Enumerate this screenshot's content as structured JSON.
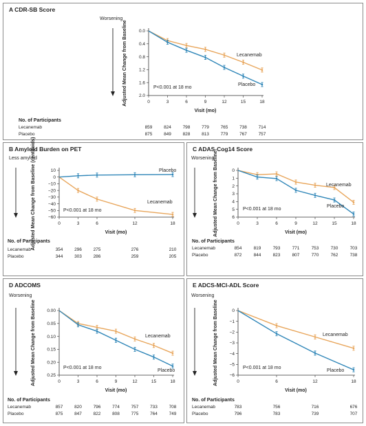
{
  "colors": {
    "lecanemab": "#e8a55a",
    "placebo": "#2f86b8",
    "axis": "#333333",
    "frame": "#8a8a8a"
  },
  "chart_data": [
    {
      "id": "A",
      "type": "line",
      "title": "A  CDR-SB Score",
      "direction_label": "Worsening",
      "ylabel": "Adjusted Mean Change from Baseline",
      "xlabel": "Visit (mo)",
      "x": [
        0,
        3,
        6,
        9,
        12,
        15,
        18
      ],
      "xticks": [
        "0",
        "3",
        "6",
        "9",
        "12",
        "15",
        "18"
      ],
      "yticks": [
        "0.0",
        "0.4",
        "0.8",
        "1.2",
        "1.6",
        "2.0"
      ],
      "ylim": [
        0,
        2.0
      ],
      "yinverted": true,
      "annotation": "P<0.001 at 18 mo",
      "series": [
        {
          "name": "Lecanemab",
          "values": [
            0,
            0.3,
            0.45,
            0.57,
            0.75,
            0.97,
            1.21
          ]
        },
        {
          "name": "Placebo",
          "values": [
            0,
            0.35,
            0.6,
            0.82,
            1.13,
            1.4,
            1.66
          ]
        }
      ],
      "participants": {
        "header": "No. of Participants",
        "rows": [
          {
            "label": "Lecanemab",
            "counts": [
              "859",
              "824",
              "798",
              "779",
              "765",
              "738",
              "714"
            ]
          },
          {
            "label": "Placebo",
            "counts": [
              "875",
              "849",
              "828",
              "813",
              "779",
              "767",
              "757"
            ]
          }
        ]
      }
    },
    {
      "id": "B",
      "type": "line",
      "title": "B  Amyloid Burden on PET",
      "direction_label": "Less amyloid",
      "ylabel": "Adjusted Mean Change from Baseline (centiloids)",
      "xlabel": "Visit (mo)",
      "x": [
        0,
        3,
        6,
        12,
        18
      ],
      "xticks": [
        "0",
        "3",
        "6",
        "12",
        "18"
      ],
      "xtick_pos": [
        0,
        3,
        6,
        12,
        18
      ],
      "yticks": [
        "10",
        "0",
        "−10",
        "−20",
        "−30",
        "−40",
        "−50",
        "−60"
      ],
      "ylim": [
        -60,
        10
      ],
      "yinverted": false,
      "annotation": "P<0.001 at 18 mo",
      "series": [
        {
          "name": "Lecanemab",
          "values": [
            0,
            -20,
            -33,
            -50,
            -56
          ]
        },
        {
          "name": "Placebo",
          "values": [
            0,
            2,
            3,
            3.5,
            3.8
          ]
        }
      ],
      "participants": {
        "header": "No. of Participants",
        "rows": [
          {
            "label": "Lecanemab",
            "counts": [
              "354",
              "296",
              "275",
              "276",
              "210"
            ]
          },
          {
            "label": "Placebo",
            "counts": [
              "344",
              "303",
              "286",
              "259",
              "205"
            ]
          }
        ]
      }
    },
    {
      "id": "C",
      "type": "line",
      "title": "C  ADAS-Cog14 Score",
      "direction_label": "Worsening",
      "ylabel": "Adjusted Mean Change from Baseline",
      "xlabel": "Visit (mo)",
      "x": [
        0,
        3,
        6,
        9,
        12,
        15,
        18
      ],
      "xticks": [
        "0",
        "3",
        "6",
        "9",
        "12",
        "15",
        "18"
      ],
      "yticks": [
        "0",
        "1",
        "2",
        "3",
        "4",
        "5",
        "6"
      ],
      "ylim": [
        0,
        6
      ],
      "yinverted": true,
      "annotation": "P<0.001 at 18 mo",
      "series": [
        {
          "name": "Lecanemab",
          "values": [
            0,
            0.55,
            0.45,
            1.5,
            1.9,
            2.2,
            4.1
          ]
        },
        {
          "name": "Placebo",
          "values": [
            0,
            0.85,
            1.05,
            2.55,
            3.2,
            3.8,
            5.6
          ]
        }
      ],
      "participants": {
        "header": "No. of Participants",
        "rows": [
          {
            "label": "Lecanemab",
            "counts": [
              "854",
              "819",
              "793",
              "771",
              "753",
              "730",
              "703"
            ]
          },
          {
            "label": "Placebo",
            "counts": [
              "872",
              "844",
              "823",
              "807",
              "770",
              "762",
              "738"
            ]
          }
        ]
      }
    },
    {
      "id": "D",
      "type": "line",
      "title": "D  ADCOMS",
      "direction_label": "Worsening",
      "ylabel": "Adjusted Mean Change from Baseline",
      "xlabel": "Visit (mo)",
      "x": [
        0,
        3,
        6,
        9,
        12,
        15,
        18
      ],
      "xticks": [
        "0",
        "3",
        "6",
        "9",
        "12",
        "15",
        "18"
      ],
      "yticks": [
        "0.00",
        "0.05",
        "0.10",
        "0.15",
        "0.20",
        "0.25"
      ],
      "ylim": [
        0,
        0.25
      ],
      "yinverted": true,
      "annotation": "P<0.001 at 18 mo",
      "series": [
        {
          "name": "Lecanemab",
          "values": [
            0,
            0.05,
            0.065,
            0.08,
            0.11,
            0.135,
            0.165
          ]
        },
        {
          "name": "Placebo",
          "values": [
            0,
            0.055,
            0.08,
            0.115,
            0.15,
            0.18,
            0.215
          ]
        }
      ],
      "participants": {
        "header": "No. of Participants",
        "rows": [
          {
            "label": "Lecanemab",
            "counts": [
              "857",
              "820",
              "796",
              "774",
              "757",
              "733",
              "708"
            ]
          },
          {
            "label": "Placebo",
            "counts": [
              "875",
              "847",
              "822",
              "808",
              "775",
              "764",
              "749"
            ]
          }
        ]
      }
    },
    {
      "id": "E",
      "type": "line",
      "title": "E  ADCS-MCI-ADL Score",
      "direction_label": "Worsening",
      "ylabel": "Adjusted Mean Change from Baseline",
      "xlabel": "Visit (mo)",
      "x": [
        0,
        6,
        12,
        18
      ],
      "xticks": [
        "0",
        "6",
        "12",
        "18"
      ],
      "yticks": [
        "0",
        "−1",
        "−2",
        "−3",
        "−4",
        "−5",
        "−6"
      ],
      "ylim": [
        -6,
        0
      ],
      "yinverted": false,
      "annotation": "P<0.001 at 18 mo",
      "series": [
        {
          "name": "Lecanemab",
          "values": [
            0,
            -1.4,
            -2.45,
            -3.5
          ]
        },
        {
          "name": "Placebo",
          "values": [
            0,
            -2.15,
            -3.95,
            -5.5
          ]
        }
      ],
      "participants": {
        "header": "No. of Participants",
        "rows": [
          {
            "label": "Lecanemab",
            "counts": [
              "783",
              "756",
              "716",
              "676"
            ]
          },
          {
            "label": "Placebo",
            "counts": [
              "796",
              "783",
              "739",
              "707"
            ]
          }
        ]
      }
    }
  ]
}
